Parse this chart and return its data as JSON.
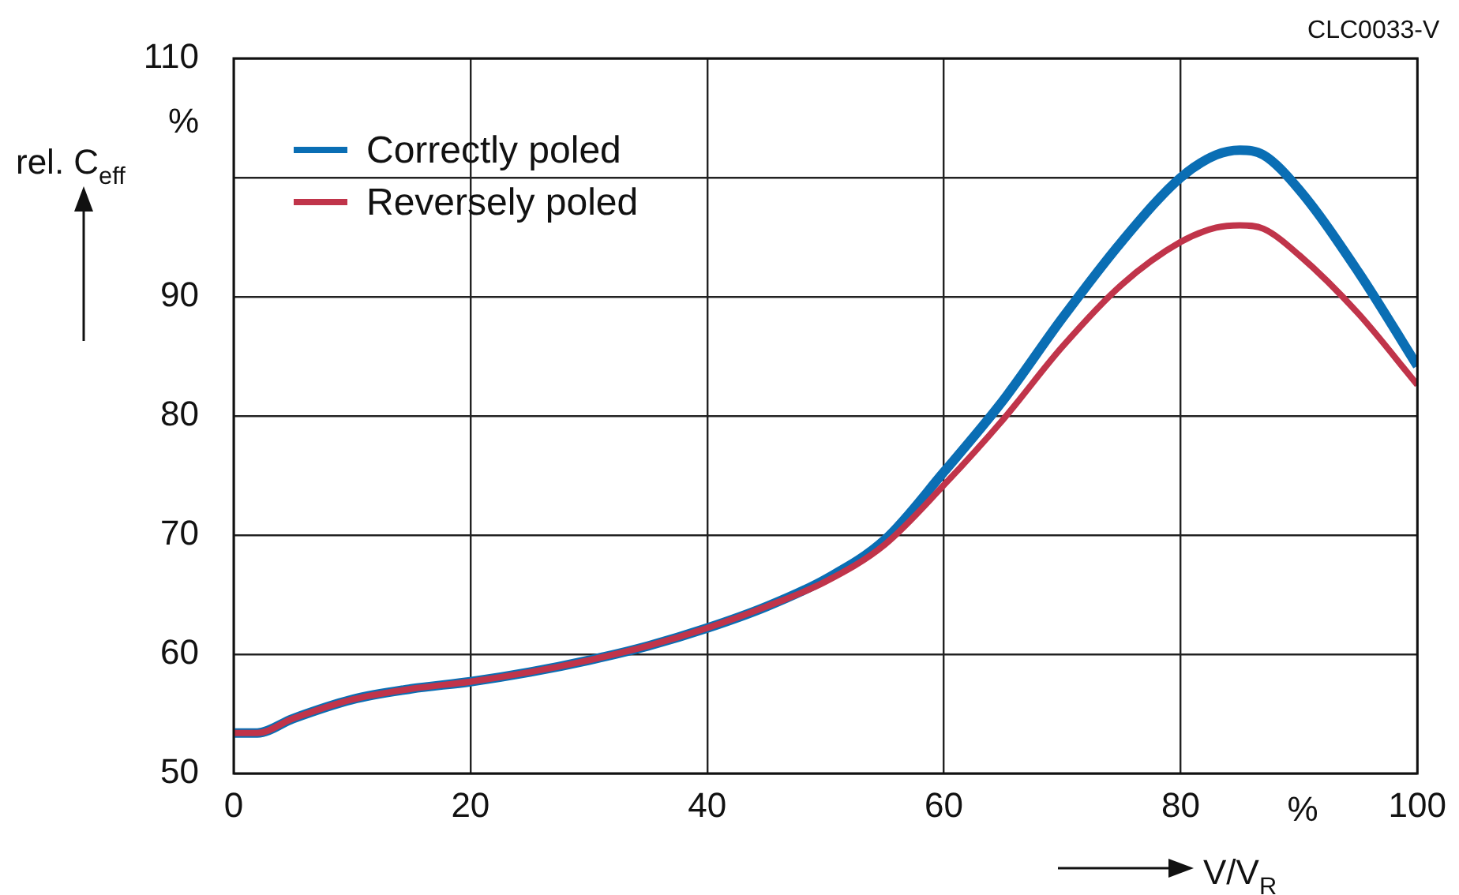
{
  "chart_data": {
    "type": "line",
    "xlabel": "V/V$_{R}$",
    "ylabel": "rel. C$_{eff}$",
    "annotations": [
      "CLC0033-V",
      "%",
      "%"
    ],
    "x": [
      0,
      2,
      5,
      10,
      15,
      20,
      25,
      30,
      35,
      40,
      45,
      50,
      55,
      60,
      65,
      70,
      75,
      80,
      83,
      85,
      87,
      90,
      95,
      100
    ],
    "series": [
      {
        "name": "Correctly poled",
        "color": "#0a6eb4",
        "values": [
          53.4,
          53.4,
          54.6,
          56.2,
          57.1,
          57.7,
          58.5,
          59.5,
          60.7,
          62.2,
          64.0,
          66.3,
          69.6,
          75.3,
          81.3,
          88.2,
          94.6,
          100.0,
          101.9,
          102.3,
          101.9,
          99.0,
          92.1,
          84.2
        ]
      },
      {
        "name": "Reversely poled",
        "color": "#c0344a",
        "values": [
          53.4,
          53.4,
          54.6,
          56.2,
          57.1,
          57.7,
          58.5,
          59.5,
          60.7,
          62.2,
          64.0,
          66.1,
          69.2,
          74.2,
          79.7,
          85.8,
          91.0,
          94.6,
          95.8,
          96.0,
          95.7,
          93.5,
          88.6,
          82.6
        ]
      }
    ],
    "xlim": [
      0,
      100
    ],
    "xticks": [
      0,
      20,
      40,
      60,
      80,
      100
    ],
    "ylim": [
      50,
      110
    ],
    "yticks": [
      50,
      60,
      70,
      80,
      90,
      {
        "value": 100,
        "label": null
      },
      110
    ],
    "grid": true,
    "legend": "top left",
    "marker": "none",
    "line_style": "solid"
  }
}
